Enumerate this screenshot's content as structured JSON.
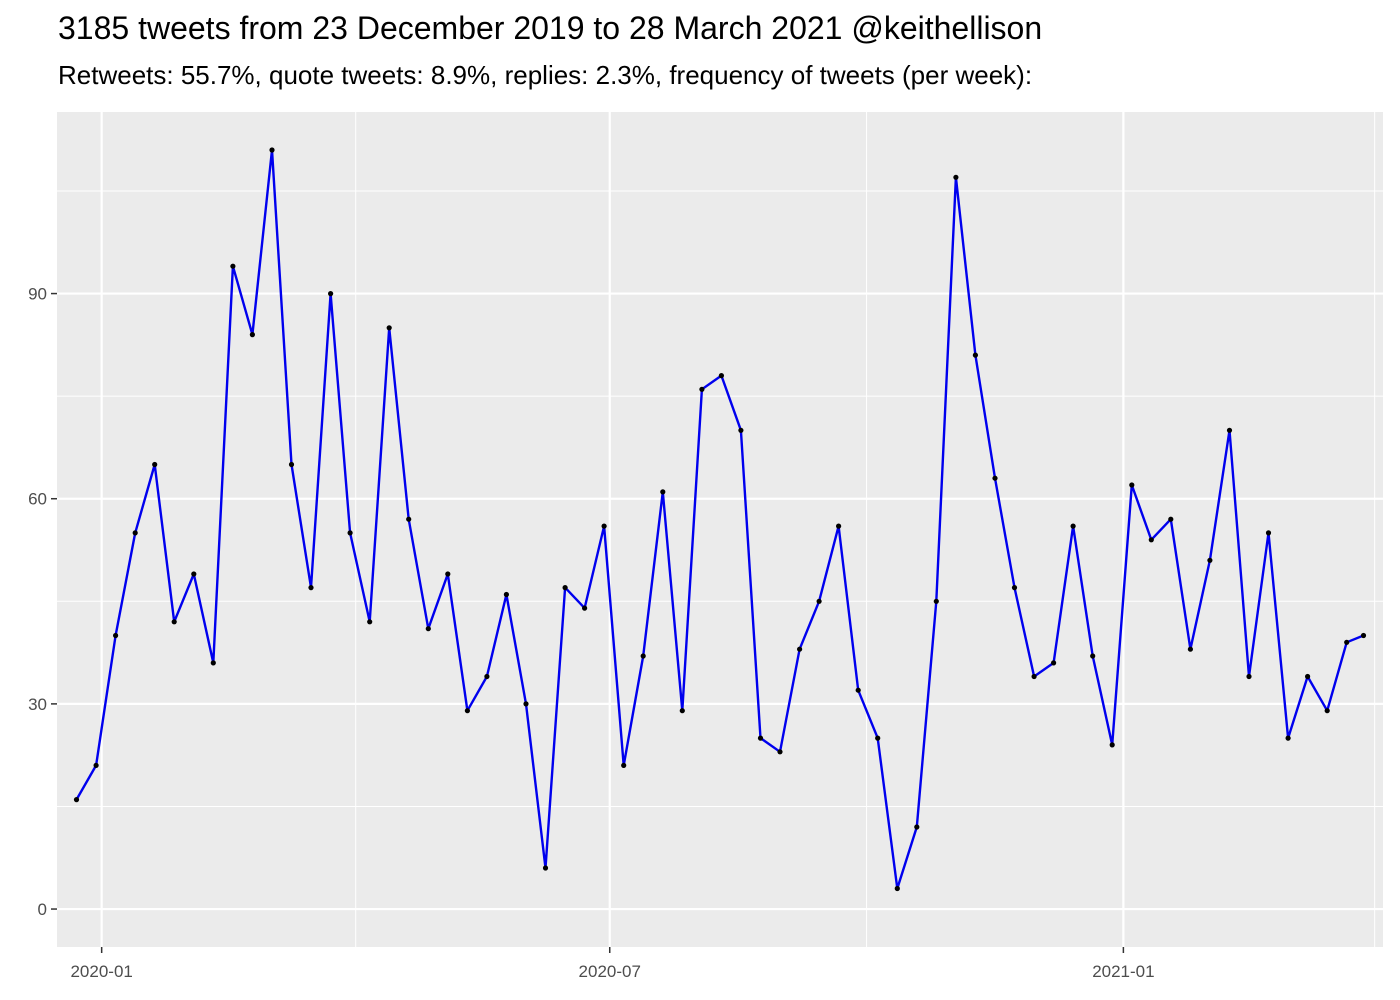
{
  "chart_data": {
    "type": "line",
    "title": "3185 tweets from 23 December 2019 to 28 March 2021 @keithellison",
    "subtitle": "Retweets: 55.7%, quote tweets: 8.9%, replies: 2.3%, frequency of tweets (per week):",
    "xlabel": "",
    "ylabel": "",
    "x_ticks": [
      "2020-01",
      "2020-07",
      "2021-01"
    ],
    "y_ticks": [
      "0",
      "30",
      "60",
      "90"
    ],
    "ylim": [
      0,
      111
    ],
    "xlim": [
      "2019-12-16",
      "2021-04-04"
    ],
    "grid": true,
    "legend": "none",
    "line_color": "#0000EE",
    "point_color": "#000000",
    "background_color": "#EBEBEB",
    "grid_color": "#FFFFFF",
    "x": [
      "2019-12-23",
      "2019-12-30",
      "2020-01-06",
      "2020-01-13",
      "2020-01-20",
      "2020-01-27",
      "2020-02-03",
      "2020-02-10",
      "2020-02-17",
      "2020-02-24",
      "2020-03-02",
      "2020-03-09",
      "2020-03-16",
      "2020-03-23",
      "2020-03-30",
      "2020-04-06",
      "2020-04-13",
      "2020-04-20",
      "2020-04-27",
      "2020-05-04",
      "2020-05-11",
      "2020-05-18",
      "2020-05-25",
      "2020-06-01",
      "2020-06-08",
      "2020-06-15",
      "2020-06-22",
      "2020-06-29",
      "2020-07-06",
      "2020-07-13",
      "2020-07-20",
      "2020-07-27",
      "2020-08-03",
      "2020-08-10",
      "2020-08-17",
      "2020-08-24",
      "2020-08-31",
      "2020-09-07",
      "2020-09-14",
      "2020-09-21",
      "2020-09-28",
      "2020-10-05",
      "2020-10-12",
      "2020-10-19",
      "2020-10-26",
      "2020-11-02",
      "2020-11-09",
      "2020-11-16",
      "2020-11-23",
      "2020-11-30",
      "2020-12-07",
      "2020-12-14",
      "2020-12-21",
      "2020-12-28",
      "2021-01-04",
      "2021-01-11",
      "2021-01-18",
      "2021-01-25",
      "2021-02-01",
      "2021-02-08",
      "2021-02-15",
      "2021-02-22",
      "2021-03-01",
      "2021-03-08",
      "2021-03-15",
      "2021-03-22",
      "2021-03-28"
    ],
    "series": [
      {
        "values": [
          16,
          21,
          40,
          55,
          65,
          42,
          49,
          36,
          94,
          84,
          111,
          65,
          47,
          90,
          55,
          42,
          85,
          57,
          41,
          49,
          29,
          34,
          46,
          30,
          6,
          47,
          44,
          56,
          21,
          37,
          61,
          29,
          76,
          78,
          70,
          25,
          23,
          38,
          45,
          56,
          32,
          25,
          3,
          12,
          45,
          107,
          81,
          63,
          47,
          34,
          36,
          56,
          37,
          24,
          62,
          54,
          57,
          38,
          51,
          70,
          34,
          55,
          25,
          34,
          29,
          39,
          40
        ]
      }
    ]
  }
}
